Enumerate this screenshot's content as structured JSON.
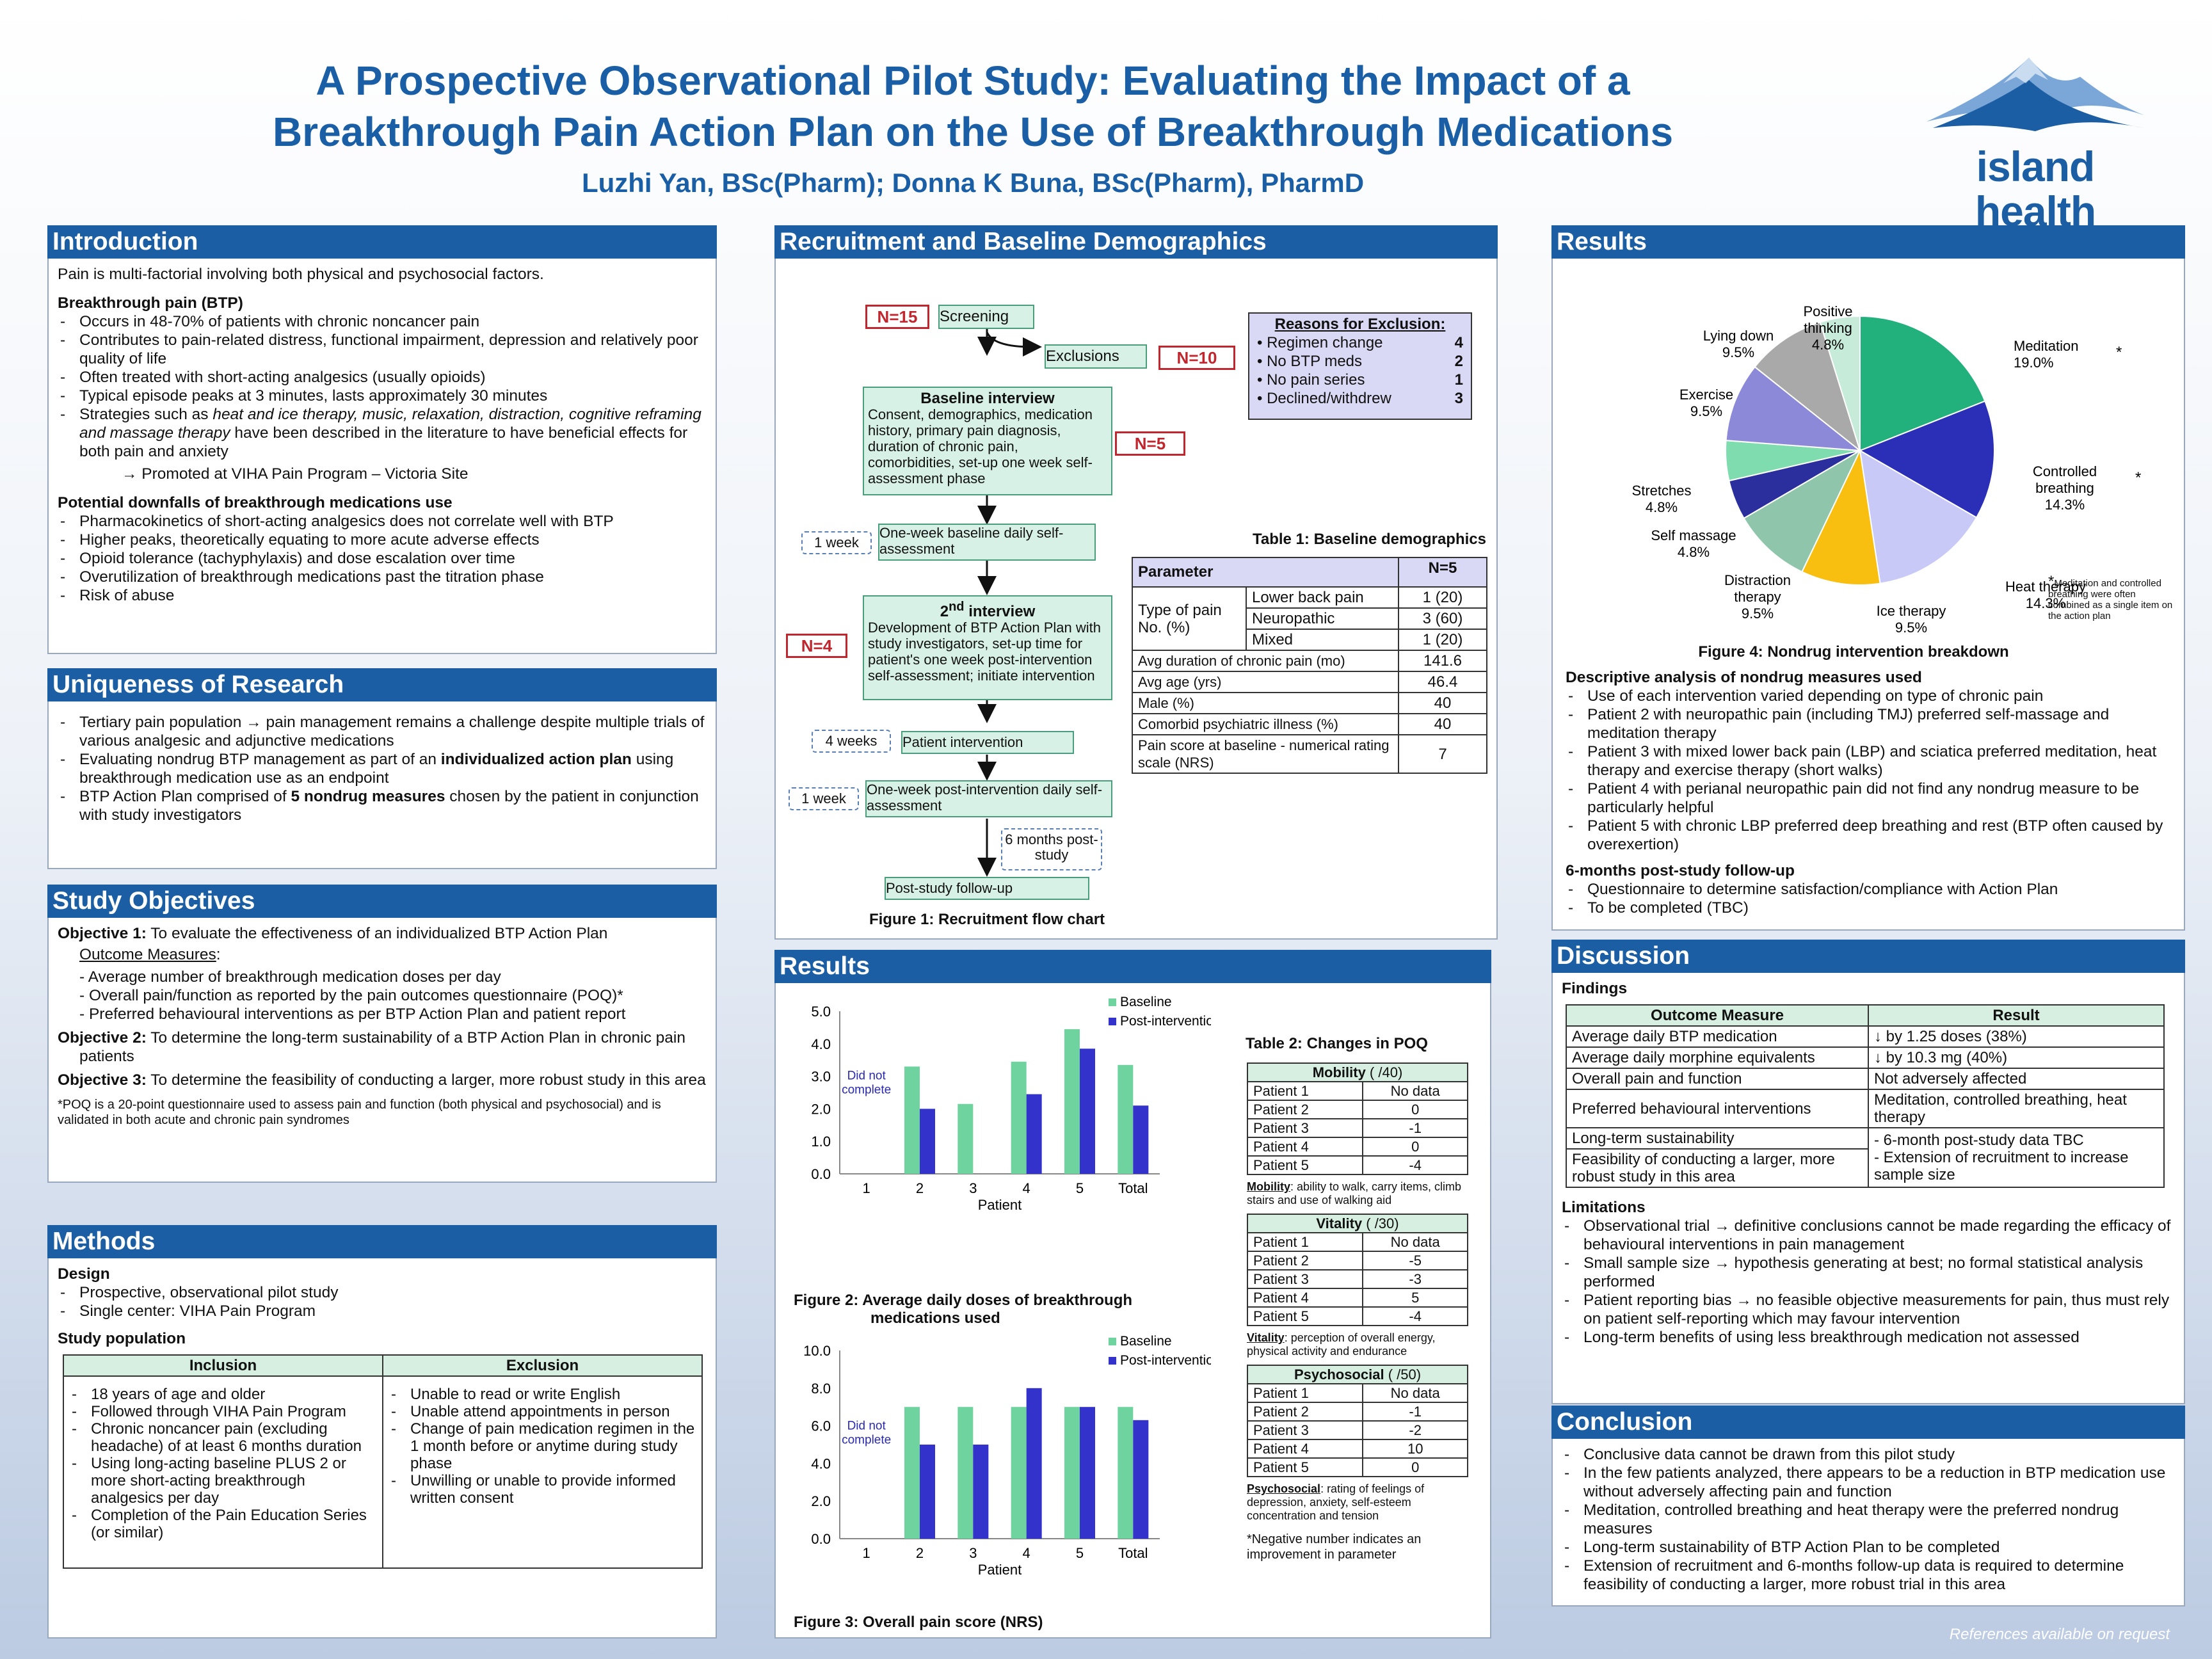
{
  "header": {
    "title_line1": "A Prospective Observational Pilot Study: Evaluating the Impact of a",
    "title_line2": "Breakthrough Pain Action Plan on the Use of Breakthrough Medications",
    "authors": "Luzhi Yan, BSc(Pharm); Donna K Buna, BSc(Pharm), PharmD",
    "logo_text": "island health"
  },
  "intro": {
    "heading": "Introduction",
    "lead": "Pain is multi-factorial involving both physical and psychosocial factors.",
    "btp_heading": "Breakthrough pain (BTP)",
    "btp_items": [
      "Occurs in 48-70% of patients with chronic noncancer pain",
      "Contributes to pain-related distress, functional impairment, depression and relatively poor quality of life",
      "Often treated with short-acting analgesics (usually opioids)",
      "Typical episode peaks at 3 minutes, lasts approximately 30 minutes"
    ],
    "strat_pre": "Strategies such as ",
    "strat_italic": "heat and ice therapy, music, relaxation, distraction, cognitive reframing and massage therapy",
    "strat_post": " have been described in the literature to have beneficial effects for both pain and anxiety",
    "promoted": "→ Promoted at VIHA Pain Program – Victoria Site",
    "down_heading": "Potential downfalls of breakthrough medications use",
    "down_items": [
      "Pharmacokinetics of short-acting analgesics does not correlate well with BTP",
      "Higher peaks, theoretically equating to more acute adverse effects",
      "Opioid tolerance (tachyphylaxis) and dose escalation over time",
      "Overutilization of breakthrough medications past the titration phase",
      "Risk of abuse"
    ]
  },
  "unique": {
    "heading": "Uniqueness of Research",
    "item1": "Tertiary pain population → pain management remains a challenge despite multiple trials of various analgesic and adjunctive medications",
    "item2_pre": "Evaluating nondrug BTP management as part of an ",
    "item2_bold": "individualized action plan",
    "item2_post": " using breakthrough medication use as an endpoint",
    "item3_pre": "BTP Action Plan comprised of ",
    "item3_bold": "5 nondrug measures",
    "item3_post": " chosen by the patient in conjunction with study investigators"
  },
  "objectives": {
    "heading": "Study Objectives",
    "o1_label": "Objective 1:",
    "o1_text": " To evaluate the effectiveness of an individualized BTP Action Plan",
    "outcome_label": "Outcome Measures",
    "outcome_colon": ":",
    "outcomes": [
      "- Average number of breakthrough medication doses per day",
      "- Overall pain/function as reported by the pain outcomes questionnaire (POQ)*",
      "- Preferred behavioural interventions as per BTP Action Plan and patient report"
    ],
    "o2_label": "Objective 2:",
    "o2_text": " To determine the long-term sustainability of a BTP Action Plan in chronic pain patients",
    "o3_label": "Objective 3:",
    "o3_text": " To determine the feasibility of conducting a larger, more robust study in this area",
    "footnote": "*POQ is a 20-point questionnaire used to assess pain and function (both physical and psychosocial) and is validated in both acute and chronic pain syndromes"
  },
  "methods": {
    "heading": "Methods",
    "design_heading": "Design",
    "design_items": [
      "Prospective, observational pilot study",
      "Single center: VIHA Pain Program"
    ],
    "pop_heading": "Study population",
    "inclusion_header": "Inclusion",
    "exclusion_header": "Exclusion",
    "inclusion": [
      "18 years of age and older",
      "Followed through VIHA Pain Program",
      "Chronic noncancer pain (excluding headache) of at least 6 months duration",
      "Using long-acting baseline PLUS 2 or more short-acting breakthrough analgesics per day",
      "Completion of the Pain Education Series (or similar)"
    ],
    "exclusion": [
      "Unable to read or write English",
      "Unable attend appointments in person",
      "Change of pain medication regimen in the 1 month before or anytime during study phase",
      "Unwilling or unable to provide informed written consent"
    ]
  },
  "recruit": {
    "heading": "Recruitment and Baseline Demographics",
    "n15": "N=15",
    "screening": "Screening",
    "exclusions": "Exclusions",
    "n10": "N=10",
    "baseline_title": "Baseline interview",
    "baseline_text": "Consent, demographics, medication history, primary pain diagnosis, duration of chronic pain, comorbidities, set-up one week self-assessment phase",
    "n5": "N=5",
    "week1": "1 week",
    "onewk_baseline": "One-week baseline daily self-assessment",
    "second_sup": "nd",
    "second_pre": "2",
    "second_post": " interview",
    "second_text": "Development of BTP Action Plan with study investigators, set-up time for patient's one week post-intervention self-assessment; initiate intervention",
    "n4": "N=4",
    "weeks4": "4 weeks",
    "patient_intervention": "Patient intervention",
    "week1b": "1 week",
    "onewk_post": "One-week post-intervention daily self-assessment",
    "months6": "6 months post-study",
    "followup": "Post-study follow-up",
    "fig1_caption": "Figure 1: Recruitment flow chart",
    "reasons_title": "Reasons for Exclusion:",
    "reasons": [
      {
        "label": "Regimen change",
        "n": "4"
      },
      {
        "label": "No BTP meds",
        "n": "2"
      },
      {
        "label": "No pain series",
        "n": "1"
      },
      {
        "label": "Declined/withdrew",
        "n": "3"
      }
    ],
    "table1_caption": "Table 1: Baseline demographics",
    "table1_param": "Parameter",
    "table1_n": "N=5",
    "type_pain": "Type of pain No. (%)",
    "pain_types": [
      {
        "label": "Lower back pain",
        "value": "1 (20)"
      },
      {
        "label": "Neuropathic",
        "value": "3 (60)"
      },
      {
        "label": "Mixed",
        "value": "1 (20)"
      }
    ],
    "demo_rows": [
      {
        "label": "Avg duration of chronic pain (mo)",
        "value": "141.6"
      },
      {
        "label": "Avg age (yrs)",
        "value": "46.4"
      },
      {
        "label": "Male (%)",
        "value": "40"
      },
      {
        "label": "Comorbid psychiatric illness (%)",
        "value": "40"
      },
      {
        "label": "Pain score at baseline  - numerical rating scale (NRS)",
        "value": "7"
      }
    ]
  },
  "results_mid": {
    "heading": "Results",
    "fig2_caption_l1": "Figure 2: Average daily doses of breakthrough",
    "fig2_caption_l2": "medications used",
    "fig3_caption": "Figure 3: Overall pain score (NRS)",
    "table2_caption": "Table 2: Changes in POQ",
    "mobility_head": "Mobility",
    "mobility_scale": " ( /40)",
    "mobility_def_label": "Mobility",
    "mobility_def": ": ability to walk, carry items, climb stairs  and use of walking aid",
    "mobility_rows": [
      [
        "Patient 1",
        "No data"
      ],
      [
        "Patient 2",
        "0"
      ],
      [
        "Patient 3",
        "-1"
      ],
      [
        "Patient 4",
        "0"
      ],
      [
        "Patient 5",
        "-4"
      ]
    ],
    "vitality_head": "Vitality",
    "vitality_scale": " ( /30)",
    "vitality_def_label": "Vitality",
    "vitality_def": ": perception of overall energy, physical activity and endurance",
    "vitality_rows": [
      [
        "Patient 1",
        "No data"
      ],
      [
        "Patient 2",
        "-5"
      ],
      [
        "Patient 3",
        "-3"
      ],
      [
        "Patient 4",
        "5"
      ],
      [
        "Patient 5",
        "-4"
      ]
    ],
    "psycho_head": "Psychosocial",
    "psycho_scale": " ( /50)",
    "psycho_def_label": "Psychosocial",
    "psycho_def": ": rating of feelings of depression, anxiety, self-esteem concentration and tension",
    "psycho_rows": [
      [
        "Patient 1",
        "No data"
      ],
      [
        "Patient 2",
        "-1"
      ],
      [
        "Patient 3",
        "-2"
      ],
      [
        "Patient 4",
        "10"
      ],
      [
        "Patient 5",
        "0"
      ]
    ],
    "neg_note": "*Negative number indicates an improvement in parameter"
  },
  "results_right": {
    "heading": "Results",
    "fig4_caption": "Figure 4: Nondrug intervention breakdown",
    "pie_footnote": "Meditation and controlled breathing were often combined as a single item on the action plan",
    "star": "*",
    "desc_heading": "Descriptive analysis of nondrug measures used",
    "desc_items": [
      "Use of each intervention varied depending on type of chronic pain",
      "Patient 2 with neuropathic pain (including TMJ) preferred self-massage and meditation therapy",
      "Patient 3 with mixed lower back pain (LBP) and sciatica preferred meditation, heat therapy and exercise therapy (short walks)",
      "Patient 4 with perianal neuropathic pain did not find any nondrug measure to be particularly helpful",
      "Patient 5 with chronic LBP preferred deep breathing and rest (BTP often caused by overexertion)"
    ],
    "followup_heading": "6-months post-study follow-up",
    "followup_items": [
      "Questionnaire to determine satisfaction/compliance with Action Plan",
      "To be completed (TBC)"
    ]
  },
  "discussion": {
    "heading": "Discussion",
    "findings": "Findings",
    "col1": "Outcome Measure",
    "col2": "Result",
    "rows": [
      [
        "Average daily BTP medication",
        "↓ by 1.25 doses (38%)"
      ],
      [
        "Average daily morphine equivalents",
        "↓ by 10.3 mg (40%)"
      ],
      [
        "Overall pain and function",
        "Not adversely affected"
      ],
      [
        "Preferred behavioural interventions",
        "Meditation, controlled breathing, heat therapy"
      ]
    ],
    "row_long": "Long-term sustainability",
    "row_feas": "Feasibility of conducting a larger, more robust study in this area",
    "res_long": "- 6-month post-study data TBC",
    "res_feas": "- Extension of recruitment to increase sample size",
    "limits_heading": "Limitations",
    "limits": [
      "Observational trial → definitive conclusions cannot be made regarding the efficacy of behavioural interventions in pain management",
      "Small sample size → hypothesis generating at best; no formal statistical analysis performed",
      "Patient reporting bias → no feasible objective measurements for pain, thus must rely on patient self-reporting which may favour intervention",
      "Long-term benefits of using less breakthrough medication not assessed"
    ]
  },
  "conclusion": {
    "heading": "Conclusion",
    "items": [
      "Conclusive data cannot be drawn from this pilot study",
      "In the few patients analyzed, there appears to be a reduction in BTP medication use without adversely affecting pain and function",
      "Meditation, controlled breathing and heat therapy were the preferred nondrug measures",
      "Long-term sustainability of BTP Action Plan to be completed",
      "Extension of recruitment and 6-months follow-up data is required to determine feasibility of conducting a larger, more robust trial in this area"
    ]
  },
  "footer": {
    "references": "References available on request"
  },
  "colors": {
    "blue": "#1b5ea4",
    "baseline": "#6fd3a0",
    "post": "#3333cc"
  },
  "chart_data": [
    {
      "type": "bar",
      "categories": [
        "1",
        "2",
        "3",
        "4",
        "5",
        "Total"
      ],
      "series": [
        {
          "name": "Baseline",
          "values": [
            null,
            3.3,
            2.15,
            3.45,
            4.45,
            3.35
          ]
        },
        {
          "name": "Post-intervention",
          "values": [
            null,
            2.0,
            null,
            2.45,
            3.85,
            2.1
          ]
        }
      ],
      "xlabel": "Patient",
      "ylim": [
        0,
        5
      ],
      "yticks": [
        "0.0",
        "1.0",
        "2.0",
        "3.0",
        "4.0",
        "5.0"
      ],
      "annotation": "Did not complete",
      "legend": "top-right"
    },
    {
      "type": "bar",
      "categories": [
        "1",
        "2",
        "3",
        "4",
        "5",
        "Total"
      ],
      "series": [
        {
          "name": "Baseline",
          "values": [
            null,
            7,
            7,
            7,
            7,
            7
          ]
        },
        {
          "name": "Post-intervention",
          "values": [
            null,
            5,
            5,
            8,
            7,
            6.3
          ]
        }
      ],
      "xlabel": "Patient",
      "ylim": [
        0,
        10
      ],
      "yticks": [
        "0.0",
        "2.0",
        "4.0",
        "6.0",
        "8.0",
        "10.0"
      ],
      "annotation": "Did not complete",
      "legend": "top-right"
    },
    {
      "type": "pie",
      "slices": [
        {
          "label": "Meditation",
          "value": 19.0,
          "pct": "19.0%",
          "color": "#22b07d",
          "star": true
        },
        {
          "label": "Controlled breathing",
          "value": 14.3,
          "pct": "14.3%",
          "color": "#2b2fb8",
          "star": true
        },
        {
          "label": "Heat therapy",
          "value": 14.3,
          "pct": "14.3%",
          "color": "#c9c9f7"
        },
        {
          "label": "Ice therapy",
          "value": 9.5,
          "pct": "9.5%",
          "color": "#f8be10"
        },
        {
          "label": "Distraction therapy",
          "value": 9.5,
          "pct": "9.5%",
          "color": "#8fc6ab"
        },
        {
          "label": "Self massage",
          "value": 4.8,
          "pct": "4.8%",
          "color": "#2b2f9e"
        },
        {
          "label": "Stretches",
          "value": 4.8,
          "pct": "4.8%",
          "color": "#7fdcae"
        },
        {
          "label": "Exercise",
          "value": 9.5,
          "pct": "9.5%",
          "color": "#8c8ad8"
        },
        {
          "label": "Lying down",
          "value": 9.5,
          "pct": "9.5%",
          "color": "#a9a9a9"
        },
        {
          "label": "Positive thinking",
          "value": 4.8,
          "pct": "4.8%",
          "color": "#c6ebd9"
        }
      ]
    }
  ]
}
